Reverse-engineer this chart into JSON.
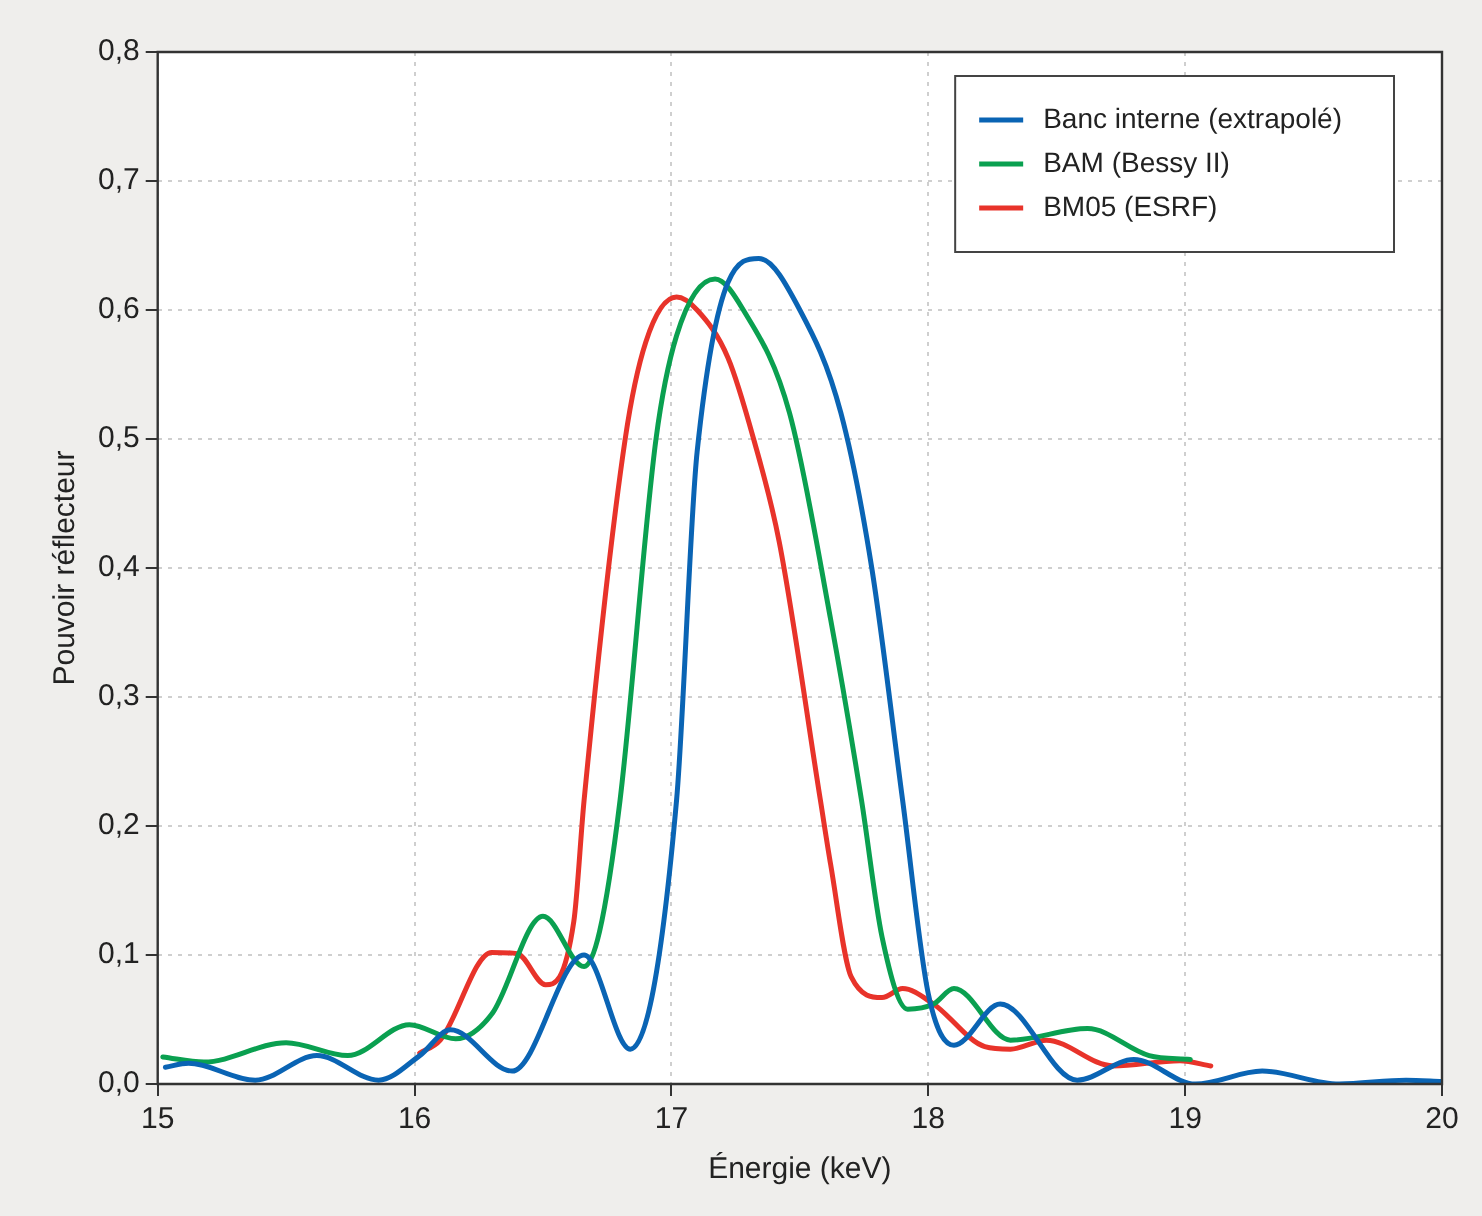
{
  "chart_data": {
    "type": "line",
    "xlabel": "Énergie (keV)",
    "ylabel": "Pouvoir réflecteur",
    "xlim": [
      15,
      20
    ],
    "xticks": [
      15,
      16,
      17,
      18,
      19,
      20
    ],
    "ylim": [
      0,
      0.8
    ],
    "yticks": [
      {
        "value": 0,
        "label": "0,0"
      },
      {
        "value": 0.1,
        "label": "0,1"
      },
      {
        "value": 0.2,
        "label": "0,2"
      },
      {
        "value": 0.3,
        "label": "0,3"
      },
      {
        "value": 0.4,
        "label": "0,4"
      },
      {
        "value": 0.5,
        "label": "0,5"
      },
      {
        "value": 0.6,
        "label": "0,6"
      },
      {
        "value": 0.7,
        "label": "0,7"
      },
      {
        "value": 0.8,
        "label": "0,8"
      }
    ],
    "grid": true,
    "legend": "top right",
    "marker": "none",
    "line_style": "solid",
    "series": [
      {
        "name": "Banc interne (extrapolé)",
        "color": "#0a64b4",
        "x": [
          15.03,
          15.12,
          15.38,
          15.62,
          15.86,
          16.02,
          16.14,
          16.38,
          16.66,
          16.84,
          17.02,
          17.1,
          17.34,
          17.5,
          17.66,
          17.78,
          17.9,
          18.0,
          18.1,
          18.28,
          18.58,
          18.8,
          19.04,
          19.3,
          19.6,
          19.86,
          20
        ],
        "values": [
          0.013,
          0.016,
          0.003,
          0.022,
          0.003,
          0.022,
          0.042,
          0.01,
          0.1,
          0.027,
          0.22,
          0.49,
          0.64,
          0.6,
          0.52,
          0.4,
          0.22,
          0.07,
          0.03,
          0.062,
          0.003,
          0.019,
          0,
          0.01,
          0,
          0.003,
          0.002
        ]
      },
      {
        "name": "BAM (Bessy II)",
        "color": "#0aa050",
        "x": [
          15.02,
          15.18,
          15.5,
          15.74,
          15.98,
          16.16,
          16.3,
          16.5,
          16.66,
          16.72,
          16.8,
          16.94,
          17.02,
          17.17,
          17.28,
          17.46,
          17.62,
          17.74,
          17.82,
          17.92,
          18.02,
          18.1,
          18.32,
          18.62,
          18.86,
          19.02
        ],
        "values": [
          0.021,
          0.017,
          0.032,
          0.022,
          0.046,
          0.035,
          0.054,
          0.13,
          0.091,
          0.118,
          0.22,
          0.5,
          0.58,
          0.624,
          0.6,
          0.52,
          0.36,
          0.22,
          0.114,
          0.058,
          0.062,
          0.074,
          0.034,
          0.043,
          0.022,
          0.019
        ]
      },
      {
        "name": "BM05 (ESRF)",
        "color": "#e8332a",
        "x": [
          16.02,
          16.1,
          16.3,
          16.4,
          16.51,
          16.62,
          16.66,
          16.82,
          16.9,
          17.02,
          17.1,
          17.22,
          17.32,
          17.42,
          17.58,
          17.62,
          17.7,
          17.82,
          17.9,
          18.02,
          18.22,
          18.32,
          18.46,
          18.72,
          18.98,
          19.1
        ],
        "values": [
          0.024,
          0.034,
          0.102,
          0.101,
          0.077,
          0.126,
          0.22,
          0.5,
          0.575,
          0.61,
          0.6,
          0.563,
          0.5,
          0.42,
          0.22,
          0.17,
          0.083,
          0.067,
          0.074,
          0.062,
          0.029,
          0.027,
          0.034,
          0.014,
          0.018,
          0.014
        ]
      }
    ]
  }
}
